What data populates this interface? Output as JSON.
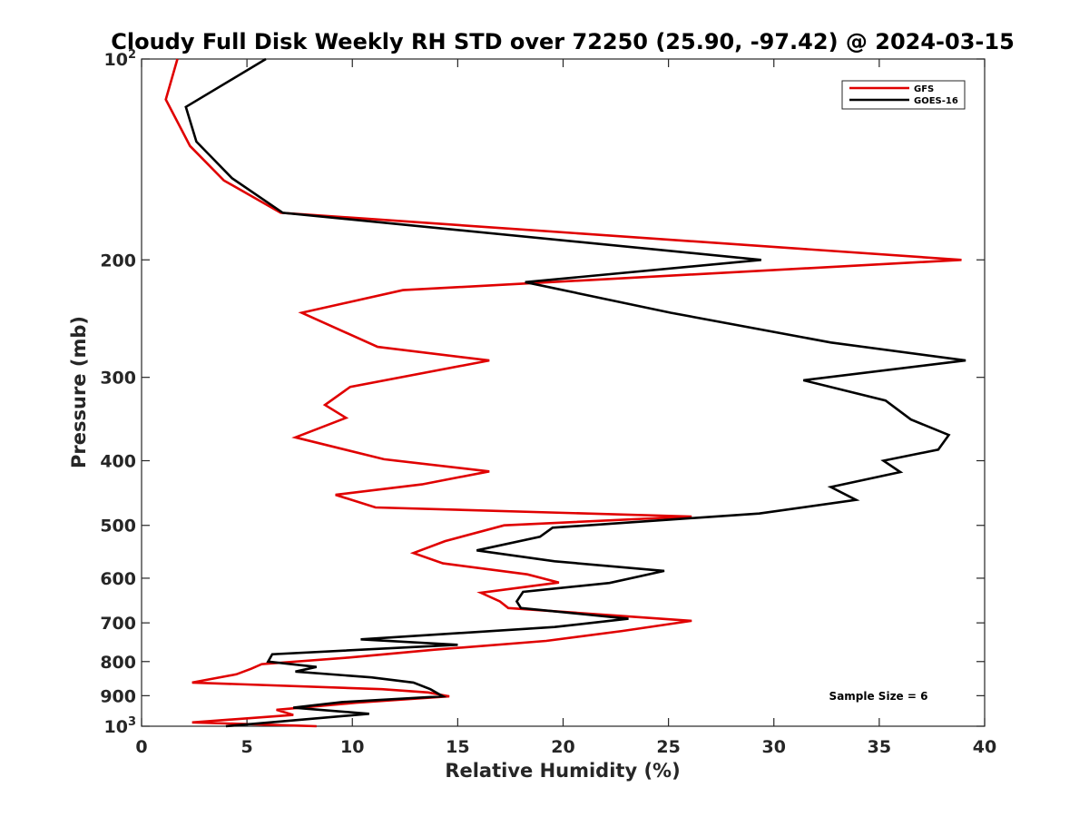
{
  "chart_data": {
    "type": "line",
    "title": "Cloudy Full Disk Weekly RH STD over 72250 (25.90, -97.42) @ 2024-03-15",
    "xlabel": "Relative Humidity (%)",
    "ylabel": "Pressure (mb)",
    "xlim": [
      0,
      40
    ],
    "ylim": [
      100,
      1000
    ],
    "y_scale": "log",
    "y_reversed": true,
    "x_ticks": [
      0,
      5,
      10,
      15,
      20,
      25,
      30,
      35,
      40
    ],
    "x_tick_labels": [
      "0",
      "5",
      "10",
      "15",
      "20",
      "25",
      "30",
      "35",
      "40"
    ],
    "y_ticks": [
      100,
      200,
      300,
      400,
      500,
      600,
      700,
      800,
      900,
      1000
    ],
    "y_tick_labels": [
      {
        "base": "10",
        "exp": "2"
      },
      {
        "base": "200",
        "exp": ""
      },
      {
        "base": "300",
        "exp": ""
      },
      {
        "base": "400",
        "exp": ""
      },
      {
        "base": "500",
        "exp": ""
      },
      {
        "base": "600",
        "exp": ""
      },
      {
        "base": "700",
        "exp": ""
      },
      {
        "base": "800",
        "exp": ""
      },
      {
        "base": "900",
        "exp": ""
      },
      {
        "base": "10",
        "exp": "3"
      }
    ],
    "grid": false,
    "legend_position": "top-right",
    "annotation": "Sample Size = 6",
    "series": [
      {
        "name": "GFS",
        "color": "#e00000",
        "points": [
          [
            1.7,
            100
          ],
          [
            1.15,
            115
          ],
          [
            2.3,
            135
          ],
          [
            3.9,
            152
          ],
          [
            6.6,
            170
          ],
          [
            38.9,
            200
          ],
          [
            12.4,
            222
          ],
          [
            7.6,
            240
          ],
          [
            11.2,
            270
          ],
          [
            16.5,
            283
          ],
          [
            9.9,
            310
          ],
          [
            8.7,
            330
          ],
          [
            9.7,
            345
          ],
          [
            7.3,
            369
          ],
          [
            11.5,
            398
          ],
          [
            16.5,
            415
          ],
          [
            13.3,
            434
          ],
          [
            9.2,
            450
          ],
          [
            11.1,
            470
          ],
          [
            26.1,
            485
          ],
          [
            17.2,
            500
          ],
          [
            14.4,
            528
          ],
          [
            12.9,
            550
          ],
          [
            14.3,
            570
          ],
          [
            18.3,
            592
          ],
          [
            19.8,
            609
          ],
          [
            16.1,
            631
          ],
          [
            17.0,
            650
          ],
          [
            17.4,
            665
          ],
          [
            26.1,
            695
          ],
          [
            22.8,
            720
          ],
          [
            19.2,
            745
          ],
          [
            13.9,
            768
          ],
          [
            9.8,
            789
          ],
          [
            5.7,
            807
          ],
          [
            5.2,
            820
          ],
          [
            4.5,
            836
          ],
          [
            2.4,
            860
          ],
          [
            11.4,
            880
          ],
          [
            13.6,
            890
          ],
          [
            14.6,
            902
          ],
          [
            10.2,
            922
          ],
          [
            6.4,
            945
          ],
          [
            7.2,
            962
          ],
          [
            2.4,
            987
          ],
          [
            8.3,
            1000
          ]
        ]
      },
      {
        "name": "GOES-16",
        "color": "#000000",
        "points": [
          [
            5.9,
            100
          ],
          [
            2.1,
            118
          ],
          [
            2.6,
            133
          ],
          [
            4.3,
            151
          ],
          [
            6.7,
            170
          ],
          [
            29.4,
            200
          ],
          [
            18.2,
            216
          ],
          [
            25.1,
            240
          ],
          [
            32.7,
            266
          ],
          [
            39.1,
            283
          ],
          [
            31.4,
            303
          ],
          [
            35.3,
            325
          ],
          [
            36.5,
            347
          ],
          [
            38.3,
            366
          ],
          [
            37.8,
            385
          ],
          [
            35.2,
            400
          ],
          [
            36.0,
            416
          ],
          [
            32.7,
            438
          ],
          [
            33.9,
            458
          ],
          [
            29.3,
            480
          ],
          [
            19.5,
            504
          ],
          [
            18.9,
            520
          ],
          [
            15.9,
            545
          ],
          [
            19.6,
            566
          ],
          [
            24.8,
            585
          ],
          [
            22.2,
            610
          ],
          [
            18.1,
            629
          ],
          [
            17.8,
            650
          ],
          [
            18.0,
            665
          ],
          [
            23.1,
            690
          ],
          [
            19.6,
            710
          ],
          [
            10.4,
            741
          ],
          [
            15.0,
            755
          ],
          [
            6.2,
            780
          ],
          [
            6.0,
            800
          ],
          [
            8.3,
            815
          ],
          [
            7.3,
            828
          ],
          [
            10.9,
            845
          ],
          [
            12.9,
            860
          ],
          [
            13.7,
            880
          ],
          [
            14.3,
            902
          ],
          [
            9.5,
            920
          ],
          [
            7.2,
            938
          ],
          [
            10.8,
            958
          ],
          [
            8.0,
            975
          ],
          [
            4.0,
            1000
          ]
        ]
      }
    ]
  }
}
